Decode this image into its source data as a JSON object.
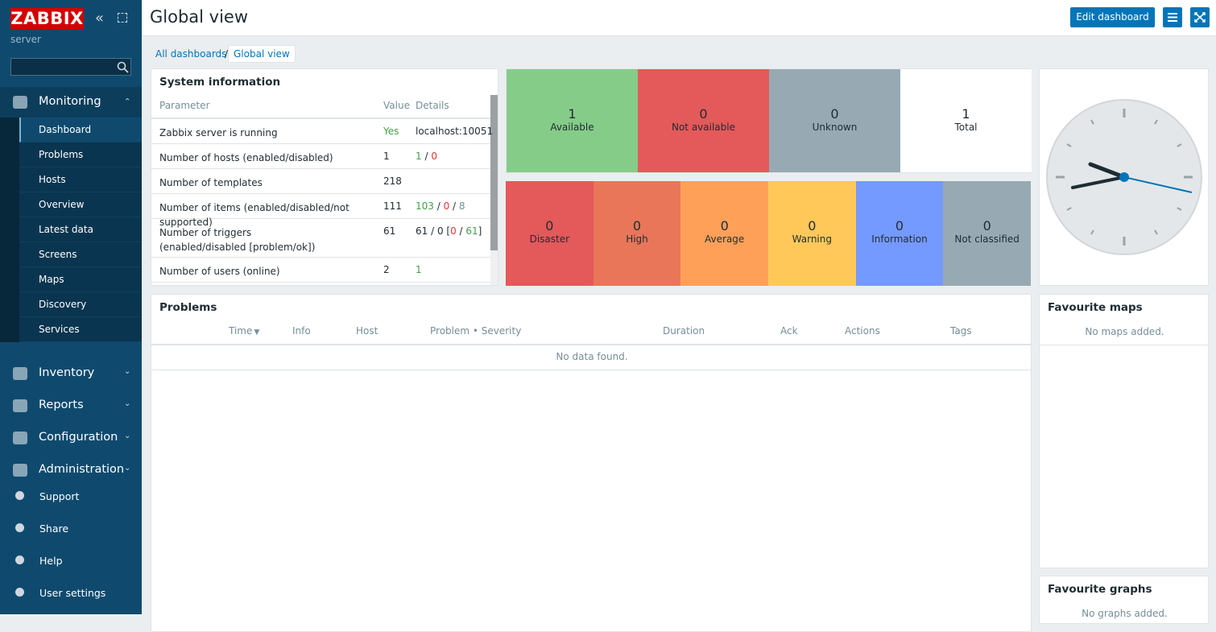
{
  "sidebar": {
    "logo": "ZABBIX",
    "server": "server",
    "menu": [
      {
        "label": "Monitoring",
        "items": [
          "Dashboard",
          "Problems",
          "Hosts",
          "Overview",
          "Latest data",
          "Screens",
          "Maps",
          "Discovery",
          "Services"
        ]
      },
      {
        "label": "Inventory"
      },
      {
        "label": "Reports"
      },
      {
        "label": "Configuration"
      },
      {
        "label": "Administration"
      }
    ],
    "bottom": [
      "Support",
      "Share",
      "Help",
      "User settings"
    ]
  },
  "header": {
    "title": "Global view",
    "edit_button": "Edit dashboard"
  },
  "breadcrumbs": {
    "root": "All dashboards",
    "separator": "/",
    "current": "Global view"
  },
  "system_information": {
    "title": "System information",
    "columns": [
      "Parameter",
      "Value",
      "Details"
    ],
    "rows": [
      {
        "parameter": "Zabbix server is running",
        "value": {
          "text": "Yes",
          "status": "ok"
        },
        "details": [
          "localhost:10051"
        ]
      },
      {
        "parameter": "Number of hosts (enabled/disabled)",
        "value": "1",
        "details": [
          {
            "text": "1",
            "status": "ok"
          },
          " / ",
          {
            "text": "0",
            "status": "problem"
          }
        ]
      },
      {
        "parameter": "Number of templates",
        "value": "218"
      },
      {
        "parameter": "Number of items (enabled/disabled/not supported)",
        "value": "111",
        "details": [
          {
            "text": "103",
            "status": "ok"
          },
          " / ",
          {
            "text": "0",
            "status": "problem"
          },
          " / ",
          {
            "text": "8",
            "status": "grey"
          }
        ]
      },
      {
        "parameter": "Number of triggers (enabled/disabled [problem/ok])",
        "value": "61",
        "details": [
          "61 / 0 [",
          {
            "text": "0",
            "status": "problem"
          },
          " / ",
          {
            "text": "61",
            "status": "ok"
          },
          "]"
        ]
      },
      {
        "parameter": "Number of users (online)",
        "value": "2",
        "details": [
          {
            "text": "1",
            "status": "ok"
          }
        ]
      }
    ]
  },
  "host_availability": [
    {
      "count": 1,
      "label": "Available",
      "color": "#86cc89"
    },
    {
      "count": 0,
      "label": "Not available",
      "color": "#e45959"
    },
    {
      "count": 0,
      "label": "Unknown",
      "color": "#97aab3"
    },
    {
      "count": 1,
      "label": "Total",
      "color": "#ffffff"
    }
  ],
  "problems_by_severity": [
    {
      "count": 0,
      "label": "Disaster",
      "color": "#e45959"
    },
    {
      "count": 0,
      "label": "High",
      "color": "#e97659"
    },
    {
      "count": 0,
      "label": "Average",
      "color": "#ffa059"
    },
    {
      "count": 0,
      "label": "Warning",
      "color": "#ffc859"
    },
    {
      "count": 0,
      "label": "Information",
      "color": "#7499ff"
    },
    {
      "count": 0,
      "label": "Not classified",
      "color": "#97aab3"
    }
  ],
  "problems": {
    "title": "Problems",
    "columns": [
      "Time",
      "Info",
      "Host",
      "Problem • Severity",
      "Duration",
      "Ack",
      "Actions",
      "Tags"
    ],
    "empty": "No data found."
  },
  "favourite_maps": {
    "title": "Favourite maps",
    "empty": "No maps added."
  },
  "favourite_graphs": {
    "title": "Favourite graphs",
    "empty": "No graphs added."
  }
}
